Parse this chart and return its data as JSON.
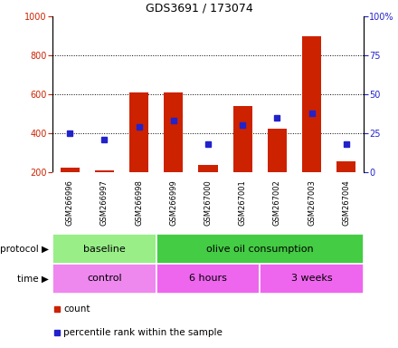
{
  "title": "GDS3691 / 173074",
  "samples": [
    "GSM266996",
    "GSM266997",
    "GSM266998",
    "GSM266999",
    "GSM267000",
    "GSM267001",
    "GSM267002",
    "GSM267003",
    "GSM267004"
  ],
  "count_values": [
    225,
    210,
    610,
    610,
    235,
    540,
    425,
    900,
    255
  ],
  "percentile_values": [
    25,
    21,
    29,
    33,
    18,
    30,
    35,
    38,
    18
  ],
  "bar_color": "#cc2200",
  "square_color": "#2222cc",
  "ylim_left": [
    200,
    1000
  ],
  "ylim_right": [
    0,
    100
  ],
  "yticks_left": [
    200,
    400,
    600,
    800,
    1000
  ],
  "yticks_right": [
    0,
    25,
    50,
    75,
    100
  ],
  "protocol_groups": [
    {
      "label": "baseline",
      "start": 0,
      "end": 2,
      "color": "#99ee88"
    },
    {
      "label": "olive oil consumption",
      "start": 3,
      "end": 8,
      "color": "#44cc44"
    }
  ],
  "time_groups": [
    {
      "label": "control",
      "start": 0,
      "end": 2,
      "color": "#ee88ee"
    },
    {
      "label": "6 hours",
      "start": 3,
      "end": 5,
      "color": "#ee66ee"
    },
    {
      "label": "3 weeks",
      "start": 6,
      "end": 8,
      "color": "#ee66ee"
    }
  ],
  "protocol_label": "protocol",
  "time_label": "time",
  "legend_count": "count",
  "legend_percentile": "percentile rank within the sample",
  "bg_color": "#ffffff",
  "tick_label_bg": "#bbbbbb",
  "bar_bottom": 200,
  "grid_yticks": [
    400,
    600,
    800
  ]
}
